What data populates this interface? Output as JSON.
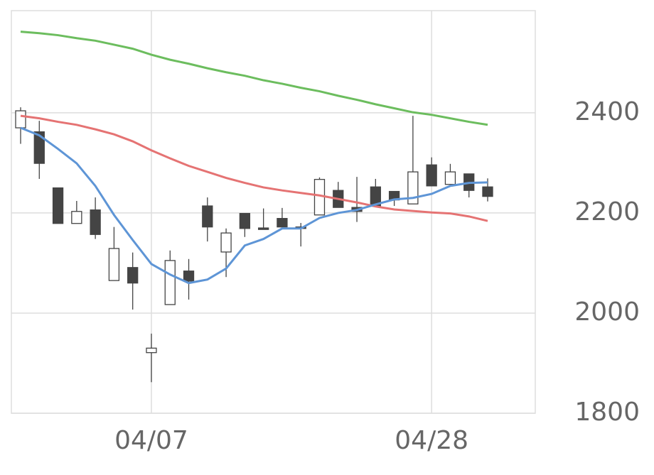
{
  "chart_data": {
    "type": "candlestick",
    "categories": [
      null,
      null,
      null,
      null,
      null,
      null,
      null,
      "04/07",
      null,
      null,
      null,
      null,
      null,
      null,
      null,
      null,
      null,
      null,
      null,
      null,
      null,
      null,
      "04/28",
      null,
      null,
      null
    ],
    "open": [
      2370,
      2362,
      2250,
      2179,
      2206,
      2065,
      2091,
      1921,
      2017,
      2084,
      2214,
      2122,
      2199,
      2170,
      2189,
      2172,
      2196,
      2245,
      2211,
      2252,
      2243,
      2218,
      2296,
      2257,
      2278,
      2252
    ],
    "high": [
      2411,
      2384,
      2250,
      2224,
      2231,
      2172,
      2121,
      1959,
      2125,
      2108,
      2231,
      2169,
      2199,
      2209,
      2210,
      2180,
      2271,
      2262,
      2272,
      2268,
      2243,
      2394,
      2311,
      2298,
      2278,
      2269
    ],
    "low": [
      2338,
      2268,
      2179,
      2179,
      2148,
      2065,
      2007,
      1862,
      2017,
      2027,
      2143,
      2072,
      2152,
      2167,
      2172,
      2133,
      2196,
      2211,
      2182,
      2214,
      2214,
      2218,
      2254,
      2257,
      2231,
      2223
    ],
    "close": [
      2404,
      2299,
      2179,
      2203,
      2157,
      2129,
      2060,
      1930,
      2105,
      2064,
      2172,
      2160,
      2169,
      2167,
      2172,
      2169,
      2267,
      2211,
      2203,
      2214,
      2226,
      2282,
      2254,
      2282,
      2245,
      2233
    ],
    "up_color": "#ffffff",
    "down_color": "#444444",
    "edge_color": "#444444",
    "lines": [
      {
        "color": "#6cbd5e",
        "values": [
          2562,
          2559,
          2555,
          2549,
          2544,
          2536,
          2528,
          2516,
          2506,
          2498,
          2489,
          2481,
          2474,
          2465,
          2458,
          2450,
          2443,
          2434,
          2426,
          2417,
          2409,
          2401,
          2396,
          2389,
          2382,
          2376
        ]
      },
      {
        "color": "#e57373",
        "values": [
          2394,
          2389,
          2382,
          2376,
          2367,
          2357,
          2343,
          2325,
          2309,
          2294,
          2282,
          2270,
          2260,
          2251,
          2245,
          2240,
          2235,
          2228,
          2221,
          2213,
          2207,
          2204,
          2201,
          2199,
          2193,
          2184
        ]
      },
      {
        "color": "#5e95d6",
        "values": [
          2370,
          2355,
          2328,
          2299,
          2254,
          2196,
          2146,
          2098,
          2077,
          2060,
          2067,
          2089,
          2135,
          2148,
          2169,
          2169,
          2190,
          2200,
          2206,
          2217,
          2227,
          2230,
          2238,
          2254,
          2260,
          2261
        ]
      }
    ],
    "ylim": [
      1800,
      2604
    ],
    "yticks": [
      1800,
      2000,
      2200,
      2400
    ],
    "grid": true
  }
}
